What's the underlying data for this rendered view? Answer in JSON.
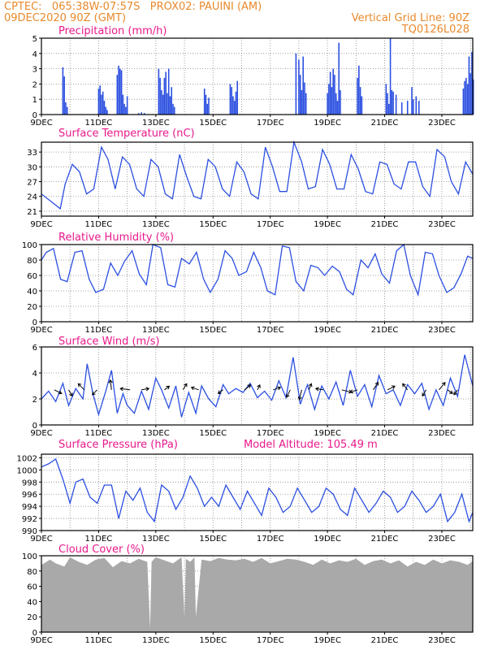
{
  "header": {
    "line1_left": "CPTEC:   065:38W-07:57S   PROX02: PAUINI (AM)",
    "line2_left": "09DEC2020 90Z (GMT)",
    "line2_right": "Vertical Grid Line: 90Z",
    "line3_right": "TQ0126L028"
  },
  "colors": {
    "line": "#2b4fe0",
    "bar": "#2b4fe0",
    "cloud": "#a9a9a9",
    "title": "#e8198b",
    "header": "#e8892c"
  },
  "x_axis": {
    "ticks": [
      {
        "day": 0,
        "label": "9DEC"
      },
      {
        "day": 2,
        "label": "11DEC"
      },
      {
        "day": 4,
        "label": "13DEC"
      },
      {
        "day": 6,
        "label": "15DEC"
      },
      {
        "day": 8,
        "label": "17DEC"
      },
      {
        "day": 10,
        "label": "19DEC"
      },
      {
        "day": 12,
        "label": "21DEC"
      },
      {
        "day": 14,
        "label": "23DEC"
      }
    ]
  },
  "chart_data": [
    {
      "type": "bar",
      "id": "precip",
      "title": "Precipitation (mm/h)",
      "ylim": [
        0,
        5
      ],
      "yticks": [
        0,
        1,
        2,
        3,
        4,
        5
      ],
      "x": [
        0.75,
        0.8,
        0.85,
        0.9,
        2.0,
        2.05,
        2.1,
        2.15,
        2.2,
        2.25,
        2.3,
        2.65,
        2.7,
        2.75,
        2.8,
        2.85,
        2.9,
        2.95,
        3.0,
        3.4,
        3.5,
        3.6,
        4.1,
        4.15,
        4.2,
        4.25,
        4.3,
        4.35,
        4.4,
        4.45,
        4.5,
        4.55,
        4.6,
        4.65,
        5.7,
        5.75,
        5.8,
        5.85,
        6.6,
        6.65,
        6.7,
        6.75,
        6.8,
        6.85,
        8.9,
        9.0,
        9.05,
        9.1,
        9.15,
        9.2,
        9.25,
        10.0,
        10.05,
        10.1,
        10.15,
        10.2,
        10.25,
        10.3,
        10.35,
        10.4,
        10.45,
        11.05,
        11.1,
        11.15,
        11.2,
        12.05,
        12.1,
        12.15,
        12.2,
        12.25,
        12.3,
        12.4,
        12.6,
        12.8,
        12.95,
        13.0,
        13.1,
        13.2,
        14.75,
        14.8,
        14.85,
        14.9,
        14.95,
        15.0,
        15.05,
        15.1
      ],
      "values": [
        3.1,
        2.5,
        0.8,
        0.5,
        1.7,
        1.9,
        1.3,
        1.5,
        0.9,
        0.5,
        0.3,
        2.6,
        3.2,
        3.0,
        2.9,
        1.3,
        0.7,
        0.5,
        1.2,
        0.1,
        0.15,
        0.1,
        3.0,
        2.4,
        1.6,
        1.3,
        2.4,
        2.8,
        1.4,
        3.0,
        1.2,
        1.8,
        0.7,
        0.5,
        1.7,
        1.3,
        0.7,
        1.1,
        2.0,
        1.8,
        1.2,
        0.9,
        1.5,
        2.2,
        4.0,
        3.6,
        2.6,
        1.6,
        3.8,
        2.1,
        1.4,
        1.4,
        2.0,
        2.8,
        1.8,
        3.0,
        2.6,
        1.4,
        0.9,
        4.7,
        1.6,
        2.4,
        3.2,
        1.8,
        1.2,
        2.0,
        1.4,
        0.7,
        5.0,
        1.6,
        1.5,
        1.3,
        0.8,
        0.9,
        1.8,
        1.0,
        1.2,
        0.9,
        1.7,
        2.2,
        2.4,
        2.0,
        3.8,
        2.7,
        4.1,
        2.3
      ]
    },
    {
      "type": "line",
      "id": "temp",
      "title": "Surface Temperature (nC)",
      "ylim": [
        20,
        35
      ],
      "yticks": [
        21,
        24,
        27,
        30,
        33
      ],
      "x": [
        0,
        0.33,
        0.66,
        0.83,
        1.08,
        1.33,
        1.58,
        1.83,
        2.1,
        2.33,
        2.58,
        2.83,
        3.08,
        3.33,
        3.58,
        3.83,
        4.08,
        4.33,
        4.58,
        4.83,
        5.08,
        5.33,
        5.58,
        5.83,
        6.08,
        6.33,
        6.58,
        6.83,
        7.08,
        7.33,
        7.58,
        7.83,
        8.08,
        8.33,
        8.58,
        8.83,
        9.1,
        9.33,
        9.58,
        9.83,
        10.08,
        10.33,
        10.58,
        10.83,
        11.08,
        11.33,
        11.58,
        11.83,
        12.08,
        12.33,
        12.58,
        12.83,
        13.08,
        13.33,
        13.58,
        13.83,
        14.1,
        14.33,
        14.58,
        14.83,
        15.08
      ],
      "values": [
        24.5,
        23.0,
        21.5,
        26.5,
        30.5,
        29.0,
        24.5,
        25.5,
        34.0,
        31.5,
        25.5,
        32.0,
        30.5,
        25.5,
        24.0,
        31.5,
        30.0,
        24.5,
        23.5,
        32.5,
        28.0,
        24.0,
        23.5,
        31.5,
        30.0,
        25.5,
        24.0,
        31.0,
        29.0,
        24.5,
        23.5,
        34.0,
        30.0,
        25.0,
        25.0,
        35.0,
        31.0,
        25.5,
        26.0,
        33.5,
        30.5,
        25.5,
        25.5,
        32.5,
        29.5,
        25.0,
        24.5,
        31.0,
        30.5,
        26.5,
        25.5,
        31.0,
        31.0,
        26.0,
        24.0,
        33.5,
        32.0,
        27.0,
        24.5,
        31.0,
        28.5
      ]
    },
    {
      "type": "line",
      "id": "rh",
      "title": "Relative Humidity (%)",
      "ylim": [
        0,
        100
      ],
      "yticks": [
        0,
        20,
        40,
        60,
        80,
        100
      ],
      "x": [
        0,
        0.17,
        0.42,
        0.67,
        0.9,
        1.17,
        1.42,
        1.67,
        1.9,
        2.17,
        2.42,
        2.67,
        2.9,
        3.17,
        3.42,
        3.67,
        3.9,
        4.17,
        4.42,
        4.67,
        4.9,
        5.17,
        5.42,
        5.67,
        5.9,
        6.17,
        6.42,
        6.67,
        6.9,
        7.17,
        7.42,
        7.67,
        7.9,
        8.17,
        8.42,
        8.67,
        8.9,
        9.17,
        9.42,
        9.67,
        9.9,
        10.17,
        10.42,
        10.67,
        10.9,
        11.17,
        11.42,
        11.67,
        11.9,
        12.17,
        12.42,
        12.67,
        12.9,
        13.17,
        13.42,
        13.67,
        13.9,
        14.17,
        14.42,
        14.67,
        14.9,
        15.08
      ],
      "values": [
        80,
        90,
        95,
        55,
        52,
        90,
        92,
        55,
        38,
        42,
        76,
        60,
        78,
        92,
        62,
        48,
        100,
        96,
        48,
        45,
        82,
        75,
        90,
        55,
        38,
        55,
        92,
        82,
        60,
        65,
        90,
        70,
        40,
        35,
        98,
        96,
        52,
        40,
        73,
        70,
        60,
        72,
        65,
        42,
        35,
        80,
        70,
        88,
        62,
        50,
        92,
        100,
        60,
        35,
        90,
        88,
        60,
        38,
        44,
        62,
        85,
        82
      ]
    },
    {
      "type": "line",
      "id": "wind",
      "title": "Surface Wind (m/s)",
      "ylim": [
        0,
        6
      ],
      "yticks": [
        0,
        2,
        4,
        6
      ],
      "x": [
        0,
        0.25,
        0.5,
        0.75,
        0.95,
        1.2,
        1.45,
        1.6,
        1.8,
        2.0,
        2.25,
        2.45,
        2.65,
        2.85,
        3.0,
        3.25,
        3.5,
        3.75,
        4.0,
        4.2,
        4.45,
        4.7,
        4.9,
        5.15,
        5.4,
        5.6,
        5.85,
        6.1,
        6.35,
        6.55,
        6.8,
        7.05,
        7.3,
        7.55,
        7.8,
        8.05,
        8.3,
        8.55,
        8.8,
        9.05,
        9.3,
        9.55,
        9.8,
        10.05,
        10.3,
        10.55,
        10.8,
        11.05,
        11.3,
        11.55,
        11.8,
        12.05,
        12.3,
        12.55,
        12.8,
        13.05,
        13.3,
        13.55,
        13.8,
        14.05,
        14.3,
        14.55,
        14.8,
        15.08
      ],
      "values": [
        2.0,
        2.6,
        1.8,
        3.2,
        1.5,
        2.8,
        2.0,
        4.7,
        2.4,
        0.8,
        2.6,
        4.2,
        0.9,
        2.4,
        1.5,
        0.9,
        2.6,
        1.2,
        3.6,
        2.7,
        1.3,
        3.0,
        0.6,
        2.5,
        0.9,
        3.0,
        2.0,
        1.4,
        3.1,
        2.4,
        2.8,
        2.5,
        3.2,
        2.1,
        2.6,
        1.9,
        3.4,
        2.1,
        5.2,
        1.6,
        3.1,
        1.2,
        3.0,
        2.0,
        3.3,
        1.5,
        4.2,
        2.2,
        3.1,
        1.4,
        3.8,
        2.4,
        2.7,
        1.5,
        3.1,
        2.4,
        3.2,
        1.2,
        2.7,
        1.5,
        3.6,
        2.2,
        5.4,
        3.0
      ],
      "vectors": [
        {
          "day": 0.45,
          "u": 0.6,
          "v": -0.3
        },
        {
          "day": 0.95,
          "u": 0.3,
          "v": -0.5
        },
        {
          "day": 1.5,
          "u": -0.5,
          "v": 0.5
        },
        {
          "day": 1.95,
          "u": -0.4,
          "v": -0.4
        },
        {
          "day": 2.45,
          "u": -0.1,
          "v": 0.8
        },
        {
          "day": 3.1,
          "u": -0.8,
          "v": 0.1
        },
        {
          "day": 3.5,
          "u": 0.6,
          "v": 0.1
        },
        {
          "day": 4.3,
          "u": 0.4,
          "v": 0.3
        },
        {
          "day": 4.95,
          "u": 0.3,
          "v": 0.5
        },
        {
          "day": 5.5,
          "u": -0.6,
          "v": 0.2
        },
        {
          "day": 6.35,
          "u": -0.4,
          "v": -0.3
        },
        {
          "day": 7.1,
          "u": 0.5,
          "v": 0.4
        },
        {
          "day": 7.55,
          "u": 0.2,
          "v": 0.4
        },
        {
          "day": 8.1,
          "u": 0.6,
          "v": 0.2
        },
        {
          "day": 8.7,
          "u": -0.3,
          "v": -0.6
        },
        {
          "day": 9.1,
          "u": -0.2,
          "v": -0.8
        },
        {
          "day": 9.35,
          "u": 0.2,
          "v": 0.5
        },
        {
          "day": 9.85,
          "u": -0.6,
          "v": 0.1
        },
        {
          "day": 10.5,
          "u": 0.8,
          "v": -0.2
        },
        {
          "day": 11.05,
          "u": -0.6,
          "v": -0.2
        },
        {
          "day": 11.6,
          "u": 0.4,
          "v": 0.6
        },
        {
          "day": 12.1,
          "u": 0.6,
          "v": 0.3
        },
        {
          "day": 12.8,
          "u": -0.4,
          "v": 0.5
        },
        {
          "day": 13.45,
          "u": -0.3,
          "v": -0.5
        },
        {
          "day": 13.9,
          "u": 0.5,
          "v": 0.6
        },
        {
          "day": 14.2,
          "u": 0.4,
          "v": -0.3
        },
        {
          "day": 14.55,
          "u": -0.3,
          "v": -0.4
        }
      ]
    },
    {
      "type": "line",
      "id": "pres",
      "title": "Surface Pressure (hPa)",
      "annotation": "Model Altitude: 105.49  m",
      "ylim": [
        990,
        1002.6
      ],
      "yticks": [
        990,
        992,
        994,
        996,
        998,
        1000,
        1002
      ],
      "x": [
        0,
        0.25,
        0.5,
        0.75,
        1.0,
        1.2,
        1.45,
        1.7,
        1.95,
        2.2,
        2.45,
        2.7,
        2.95,
        3.2,
        3.45,
        3.7,
        3.95,
        4.2,
        4.45,
        4.7,
        4.95,
        5.2,
        5.45,
        5.7,
        5.95,
        6.2,
        6.45,
        6.7,
        6.95,
        7.2,
        7.45,
        7.7,
        7.95,
        8.2,
        8.45,
        8.7,
        8.95,
        9.2,
        9.45,
        9.7,
        9.95,
        10.2,
        10.45,
        10.7,
        10.95,
        11.2,
        11.45,
        11.7,
        11.95,
        12.2,
        12.45,
        12.7,
        12.95,
        13.2,
        13.45,
        13.7,
        13.95,
        14.2,
        14.45,
        14.7,
        14.95,
        15.08
      ],
      "values": [
        1000.5,
        1001.0,
        1001.8,
        998.5,
        994.5,
        998.0,
        998.5,
        995.5,
        994.5,
        997.5,
        997.5,
        992.0,
        996.5,
        995.0,
        997.0,
        993.0,
        991.5,
        997.5,
        996.5,
        993.5,
        995.5,
        999.0,
        997.0,
        994.0,
        995.5,
        994.0,
        997.5,
        995.5,
        993.5,
        996.5,
        994.5,
        992.5,
        997.0,
        995.5,
        993.0,
        994.0,
        997.0,
        995.0,
        993.0,
        994.0,
        997.0,
        996.0,
        993.5,
        992.5,
        997.0,
        995.0,
        993.0,
        994.5,
        996.5,
        995.5,
        993.0,
        994.0,
        996.5,
        995.0,
        993.0,
        994.0,
        996.0,
        991.5,
        993.0,
        996.0,
        991.5,
        993.0
      ]
    },
    {
      "type": "area",
      "id": "cloud",
      "title": "Cloud Cover (%)",
      "ylim": [
        0,
        100
      ],
      "yticks": [
        0,
        20,
        40,
        60,
        80,
        100
      ],
      "x": [
        0,
        0.3,
        0.5,
        0.8,
        1.0,
        1.3,
        1.6,
        1.9,
        2.2,
        2.5,
        2.8,
        3.1,
        3.4,
        3.7,
        3.8,
        3.85,
        4.0,
        4.3,
        4.6,
        4.9,
        5.0,
        5.05,
        5.2,
        5.35,
        5.4,
        5.6,
        5.9,
        6.2,
        6.5,
        6.8,
        7.1,
        7.4,
        7.7,
        8.0,
        8.3,
        8.6,
        8.9,
        9.2,
        9.5,
        9.8,
        10.1,
        10.4,
        10.7,
        11.0,
        11.3,
        11.6,
        11.9,
        12.2,
        12.5,
        12.8,
        13.1,
        13.4,
        13.7,
        14.0,
        14.3,
        14.6,
        14.9,
        15.08
      ],
      "values": [
        88,
        95,
        90,
        86,
        98,
        92,
        88,
        95,
        97,
        85,
        93,
        90,
        96,
        92,
        5,
        92,
        98,
        94,
        90,
        98,
        18,
        96,
        92,
        98,
        20,
        95,
        93,
        97,
        95,
        94,
        96,
        92,
        97,
        90,
        93,
        96,
        95,
        92,
        88,
        95,
        90,
        94,
        92,
        96,
        88,
        93,
        95,
        90,
        94,
        86,
        92,
        88,
        95,
        90,
        94,
        92,
        88,
        93
      ]
    }
  ]
}
